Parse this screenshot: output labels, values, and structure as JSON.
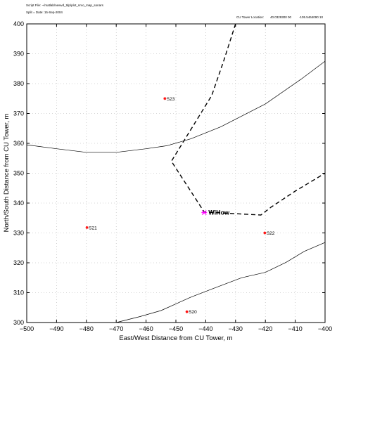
{
  "header": {
    "script_file": "Script File: ~/matlab/newvd_tdp/plot_nrvo_map_sonars",
    "split_date": "Split = Date: 15-Sep-2004",
    "tower_location_label": "CU Tower Location:",
    "tower_lat": "40.0329300 00",
    "tower_lon": "-105.5464090 10"
  },
  "chart_data": {
    "type": "line",
    "title": "",
    "xlabel": "East/West Distance from CU Tower, m",
    "ylabel": "North/South Distance from CU Tower, m",
    "xlim": [
      -500,
      -400
    ],
    "ylim": [
      300,
      400
    ],
    "xticks": [
      -500,
      -490,
      -480,
      -470,
      -460,
      -450,
      -440,
      -430,
      -420,
      -410,
      -400
    ],
    "yticks": [
      300,
      310,
      320,
      330,
      340,
      350,
      360,
      370,
      380,
      390,
      400
    ],
    "grid": true,
    "contours": [
      {
        "style": "solid",
        "points": [
          [
            -500,
            359.5
          ],
          [
            -490,
            358.2
          ],
          [
            -480,
            357.0
          ],
          [
            -470,
            357.0
          ],
          [
            -460,
            358.2
          ],
          [
            -453,
            359.2
          ],
          [
            -445,
            361.5
          ],
          [
            -435,
            365.5
          ],
          [
            -420,
            373.2
          ],
          [
            -408,
            381.5
          ],
          [
            -400,
            387.5
          ]
        ]
      },
      {
        "style": "solid",
        "points": [
          [
            -470,
            300.0
          ],
          [
            -462,
            302.0
          ],
          [
            -455,
            304.0
          ],
          [
            -445,
            308.5
          ],
          [
            -438,
            311.2
          ],
          [
            -428,
            315.0
          ],
          [
            -420,
            316.8
          ],
          [
            -413,
            320.2
          ],
          [
            -407,
            323.8
          ],
          [
            -400,
            326.8
          ]
        ]
      },
      {
        "style": "dashed",
        "points": [
          [
            -430,
            400.0
          ],
          [
            -434,
            387.5
          ],
          [
            -438,
            376.0
          ],
          [
            -451.5,
            354.0
          ],
          [
            -440.5,
            337.0
          ],
          [
            -431,
            336.5
          ],
          [
            -421.5,
            336.0
          ],
          [
            -418,
            338.7
          ],
          [
            -410,
            344.0
          ],
          [
            -400,
            350.0
          ]
        ]
      }
    ],
    "sites": [
      {
        "name": "S23",
        "x": -453.7,
        "y": 375.0,
        "kind": "sonar"
      },
      {
        "name": "S21",
        "x": -479.8,
        "y": 331.8,
        "kind": "sonar"
      },
      {
        "name": "S22",
        "x": -420.2,
        "y": 330.0,
        "kind": "sonar"
      },
      {
        "name": "S20",
        "x": -446.3,
        "y": 303.6,
        "kind": "sonar"
      },
      {
        "name": "WiHow",
        "x": -440.5,
        "y": 336.8,
        "kind": "station"
      }
    ],
    "colors": {
      "sonar_marker": "#ff0000",
      "station_marker": "#ff00ff",
      "lines": "#000000",
      "grid": "#b0b0b0"
    }
  }
}
